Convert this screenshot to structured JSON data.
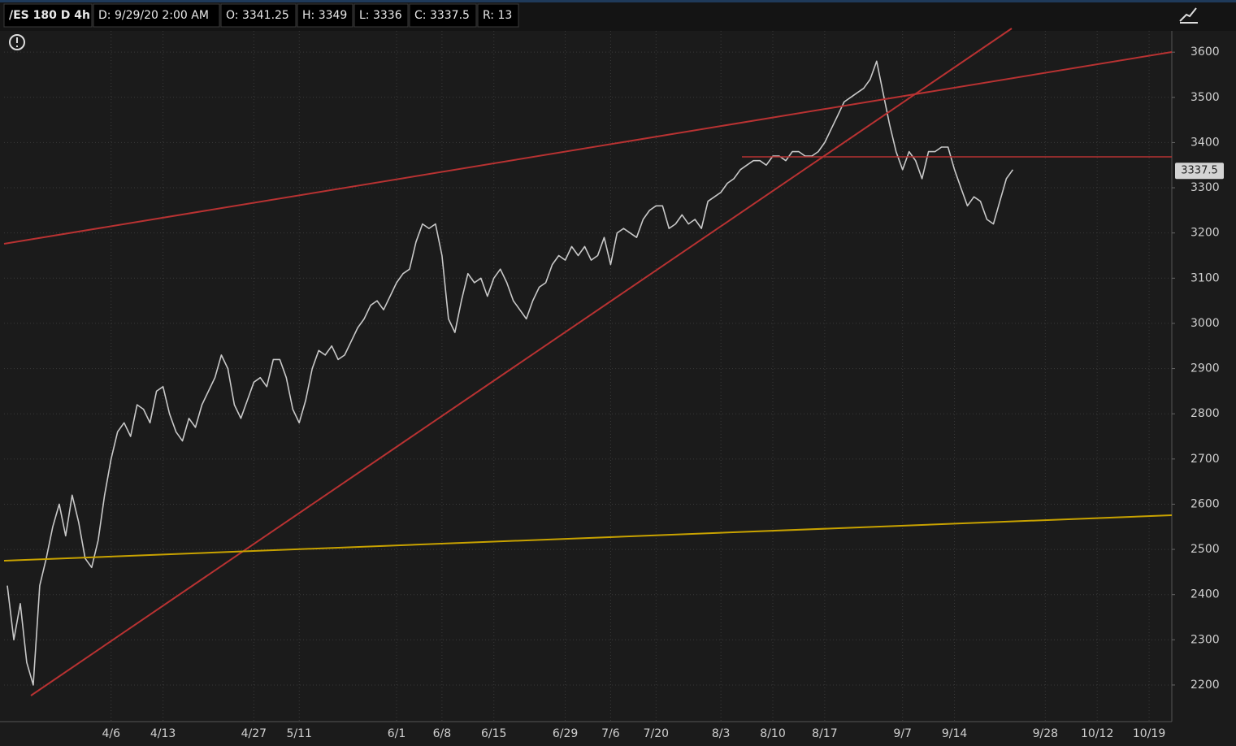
{
  "chart_data": {
    "type": "line",
    "header": {
      "symbol": "/ES 180 D 4h",
      "date": "D: 9/29/20 2:00 AM",
      "open": "O: 3341.25",
      "high": "H: 3349",
      "low": "L: 3336",
      "close": "C: 3337.5",
      "range": "R: 13"
    },
    "last_price": 3337.5,
    "ylim": [
      2119,
      3701
    ],
    "yticks": [
      2200,
      2300,
      2400,
      2500,
      2600,
      2700,
      2800,
      2900,
      3000,
      3100,
      3200,
      3300,
      3400,
      3500,
      3600
    ],
    "grid": true,
    "color": "#c8c8c8",
    "categories": [
      null,
      null,
      null,
      null,
      null,
      null,
      null,
      null,
      null,
      null,
      null,
      null,
      null,
      null,
      null,
      null,
      "4/6",
      null,
      null,
      null,
      null,
      null,
      null,
      null,
      "4/13",
      null,
      null,
      null,
      null,
      null,
      null,
      null,
      null,
      null,
      null,
      null,
      null,
      null,
      "4/27",
      null,
      null,
      null,
      null,
      null,
      null,
      "5/11",
      null,
      null,
      null,
      null,
      null,
      null,
      null,
      null,
      null,
      null,
      null,
      null,
      null,
      null,
      "6/1",
      null,
      null,
      null,
      null,
      null,
      null,
      "6/8",
      null,
      null,
      null,
      null,
      null,
      null,
      null,
      "6/15",
      null,
      null,
      null,
      null,
      null,
      null,
      null,
      null,
      null,
      null,
      "6/29",
      null,
      null,
      null,
      null,
      null,
      null,
      "7/6",
      null,
      null,
      null,
      null,
      null,
      null,
      "7/20",
      null,
      null,
      null,
      null,
      null,
      null,
      null,
      null,
      null,
      "8/3",
      null,
      null,
      null,
      null,
      null,
      null,
      null,
      "8/10",
      null,
      null,
      null,
      null,
      null,
      null,
      null,
      "8/17",
      null,
      null,
      null,
      null,
      null,
      null,
      null,
      null,
      null,
      null,
      null,
      "9/7",
      null,
      null,
      null,
      null,
      null,
      null,
      null,
      "9/14",
      null,
      null,
      null,
      null,
      null,
      null,
      null,
      null,
      null,
      null,
      null,
      null,
      null,
      "9/28",
      null,
      null,
      null,
      null,
      null,
      null,
      null,
      "10/12",
      null,
      null,
      null,
      null,
      null,
      null,
      null,
      "10/19",
      null,
      null,
      null
    ],
    "values": [
      2420,
      2300,
      2380,
      2250,
      2200,
      2420,
      2480,
      2550,
      2600,
      2530,
      2620,
      2560,
      2480,
      2460,
      2520,
      2620,
      2700,
      2760,
      2780,
      2750,
      2820,
      2810,
      2780,
      2850,
      2860,
      2800,
      2760,
      2740,
      2790,
      2770,
      2820,
      2850,
      2880,
      2930,
      2900,
      2820,
      2790,
      2830,
      2870,
      2880,
      2860,
      2920,
      2920,
      2880,
      2810,
      2780,
      2830,
      2900,
      2940,
      2930,
      2950,
      2920,
      2930,
      2960,
      2990,
      3010,
      3040,
      3050,
      3030,
      3060,
      3090,
      3110,
      3120,
      3180,
      3220,
      3210,
      3220,
      3150,
      3010,
      2980,
      3050,
      3110,
      3090,
      3100,
      3060,
      3100,
      3120,
      3090,
      3050,
      3030,
      3010,
      3050,
      3080,
      3090,
      3130,
      3150,
      3140,
      3170,
      3150,
      3170,
      3140,
      3150,
      3190,
      3130,
      3200,
      3210,
      3200,
      3190,
      3230,
      3250,
      3260,
      3260,
      3210,
      3220,
      3240,
      3220,
      3230,
      3210,
      3270,
      3280,
      3290,
      3310,
      3320,
      3340,
      3350,
      3360,
      3360,
      3350,
      3370,
      3370,
      3360,
      3380,
      3380,
      3370,
      3370,
      3380,
      3400,
      3430,
      3460,
      3490,
      3500,
      3510,
      3520,
      3540,
      3580,
      3510,
      3440,
      3380,
      3340,
      3380,
      3360,
      3320,
      3380,
      3380,
      3390,
      3390,
      3340,
      3300,
      3260,
      3280,
      3270,
      3230,
      3220,
      3270,
      3320,
      3340,
      null,
      null,
      null,
      null,
      null,
      null,
      null,
      null,
      null,
      null,
      null,
      null,
      null,
      null,
      null,
      null,
      null,
      null,
      null,
      null,
      null,
      null,
      null,
      null
    ]
  }
}
